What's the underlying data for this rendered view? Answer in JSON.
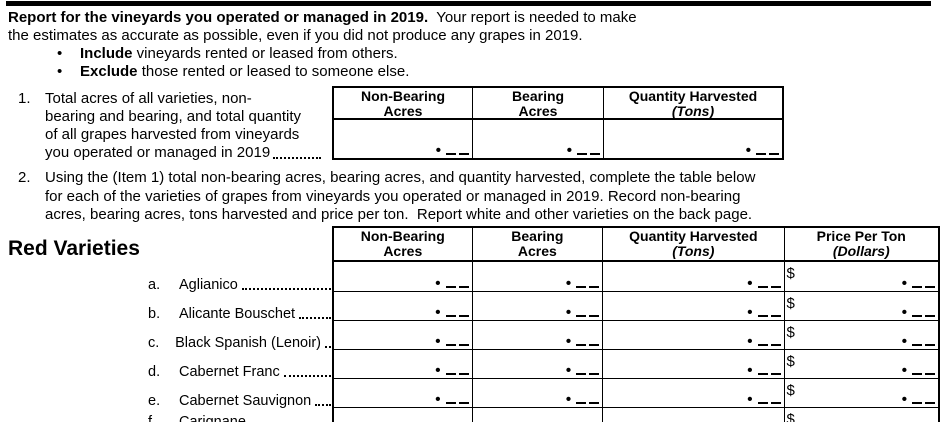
{
  "intro": {
    "bullet_glyph": "•",
    "lead_bold": "Report for the vineyards you operated or managed in 2019.",
    "lead_rest": "  Your report is needed to make",
    "line2": "the estimates as accurate as possible, even if you did not produce any grapes in 2019.",
    "bullets": [
      {
        "bold": "Include",
        "rest": " vineyards rented or leased from others."
      },
      {
        "bold": "Exclude",
        "rest": " those rented or leased to someone else."
      }
    ]
  },
  "item1": {
    "number": "1.",
    "lines": [
      "Total acres of all varieties, non-",
      "bearing and bearing, and total quantity",
      "of all grapes harvested from vineyards",
      "you operated or managed in 2019"
    ],
    "table": {
      "columns": [
        {
          "line1": "Non-Bearing",
          "line2": "Acres",
          "italic": false
        },
        {
          "line1": "Bearing",
          "line2": "Acres",
          "italic": false
        },
        {
          "line1": "Quantity Harvested",
          "line2": "(Tons)",
          "italic": true
        }
      ],
      "entry_marker": "•"
    }
  },
  "item2": {
    "number": "2.",
    "lines": [
      "Using the (Item 1) total non-bearing acres, bearing acres, and quantity harvested, complete the table below",
      "for each of the varieties of grapes from vineyards you operated or managed in 2019. Record non-bearing",
      "acres, bearing acres, tons harvested and price per ton.  Report white and other varieties on the back page."
    ]
  },
  "red_varieties": {
    "heading": "Red Varieties",
    "table": {
      "columns": [
        {
          "line1": "Non-Bearing",
          "line2": "Acres",
          "italic": false
        },
        {
          "line1": "Bearing",
          "line2": "Acres",
          "italic": false
        },
        {
          "line1": "Quantity Harvested",
          "line2": "(Tons)",
          "italic": true
        },
        {
          "line1": "Price Per Ton",
          "line2": "(Dollars)",
          "italic": true
        }
      ],
      "currency_symbol": "$",
      "entry_marker": "•"
    },
    "rows": [
      {
        "letter": "a.",
        "name": "Aglianico"
      },
      {
        "letter": "b.",
        "name": "Alicante Bouschet"
      },
      {
        "letter": "c.",
        "name": "Black Spanish (Lenoir)"
      },
      {
        "letter": "d.",
        "name": "Cabernet Franc"
      },
      {
        "letter": "e.",
        "name": "Cabernet Sauvignon"
      },
      {
        "letter": "f.",
        "name": "Carignane"
      }
    ]
  },
  "colors": {
    "ink": "#000000",
    "paper": "#ffffff"
  }
}
